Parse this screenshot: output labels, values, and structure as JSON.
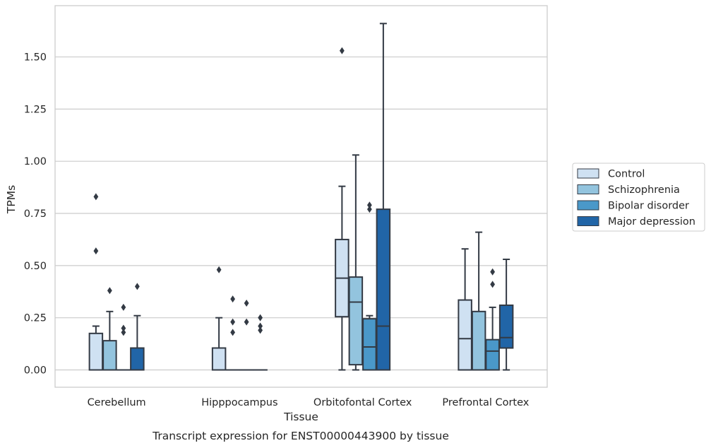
{
  "chart_data": {
    "type": "box",
    "xlabel": "Tissue",
    "ylabel": "TPMs",
    "caption": "Transcript expression for ENST00000443900 by tissue",
    "categories": [
      "Cerebellum",
      "Hipppocampus",
      "Orbitofontal Cortex",
      "Prefrontal Cortex"
    ],
    "ylim": [
      -0.08,
      1.79
    ],
    "yticks": [
      0.0,
      0.25,
      0.5,
      0.75,
      1.0,
      1.25,
      1.5
    ],
    "ytick_labels": [
      "0.00",
      "0.25",
      "0.50",
      "0.75",
      "1.00",
      "1.25",
      "1.50"
    ],
    "grid": "horizontal",
    "legend_placement": "center-right outside",
    "colors": {
      "Control": "#cfe1f2",
      "Schizophrenia": "#93c4de",
      "Bipolar disorder": "#4a98c9",
      "Major depression": "#2165a7",
      "box_edge": "#333a44",
      "grid": "#cccccc",
      "frame": "#cccccc"
    },
    "series": [
      {
        "name": "Control",
        "boxes": [
          {
            "q1": 0.0,
            "median": 0.0,
            "q3": 0.175,
            "whislo": 0.0,
            "whishi": 0.21,
            "fliers": [
              0.57,
              0.83
            ]
          },
          {
            "q1": 0.0,
            "median": 0.0,
            "q3": 0.105,
            "whislo": 0.0,
            "whishi": 0.25,
            "fliers": [
              0.48
            ]
          },
          {
            "q1": 0.255,
            "median": 0.44,
            "q3": 0.625,
            "whislo": 0.0,
            "whishi": 0.88,
            "fliers": [
              1.53
            ]
          },
          {
            "q1": 0.0,
            "median": 0.15,
            "q3": 0.335,
            "whislo": 0.0,
            "whishi": 0.58,
            "fliers": []
          }
        ]
      },
      {
        "name": "Schizophrenia",
        "boxes": [
          {
            "q1": 0.0,
            "median": 0.0,
            "q3": 0.14,
            "whislo": 0.0,
            "whishi": 0.28,
            "fliers": [
              0.38
            ]
          },
          {
            "q1": 0.0,
            "median": 0.0,
            "q3": 0.0,
            "whislo": 0.0,
            "whishi": 0.0,
            "fliers": [
              0.18,
              0.23,
              0.34
            ]
          },
          {
            "q1": 0.025,
            "median": 0.325,
            "q3": 0.445,
            "whislo": 0.0,
            "whishi": 1.03,
            "fliers": []
          },
          {
            "q1": 0.0,
            "median": 0.0,
            "q3": 0.28,
            "whislo": 0.0,
            "whishi": 0.66,
            "fliers": []
          }
        ]
      },
      {
        "name": "Bipolar disorder",
        "boxes": [
          {
            "q1": 0.0,
            "median": 0.0,
            "q3": 0.0,
            "whislo": 0.0,
            "whishi": 0.0,
            "fliers": [
              0.18,
              0.2,
              0.3
            ]
          },
          {
            "q1": 0.0,
            "median": 0.0,
            "q3": 0.0,
            "whislo": 0.0,
            "whishi": 0.0,
            "fliers": [
              0.23,
              0.32
            ]
          },
          {
            "q1": 0.0,
            "median": 0.11,
            "q3": 0.245,
            "whislo": 0.0,
            "whishi": 0.26,
            "fliers": [
              0.77,
              0.79
            ]
          },
          {
            "q1": 0.0,
            "median": 0.09,
            "q3": 0.145,
            "whislo": 0.0,
            "whishi": 0.3,
            "fliers": [
              0.41,
              0.47
            ]
          }
        ]
      },
      {
        "name": "Major depression",
        "boxes": [
          {
            "q1": 0.0,
            "median": 0.0,
            "q3": 0.105,
            "whislo": 0.0,
            "whishi": 0.26,
            "fliers": [
              0.4
            ]
          },
          {
            "q1": 0.0,
            "median": 0.0,
            "q3": 0.0,
            "whislo": 0.0,
            "whishi": 0.0,
            "fliers": [
              0.19,
              0.21,
              0.25
            ]
          },
          {
            "q1": 0.0,
            "median": 0.21,
            "q3": 0.77,
            "whislo": 0.0,
            "whishi": 1.66,
            "fliers": []
          },
          {
            "q1": 0.105,
            "median": 0.155,
            "q3": 0.31,
            "whislo": 0.0,
            "whishi": 0.53,
            "fliers": []
          }
        ]
      }
    ]
  }
}
